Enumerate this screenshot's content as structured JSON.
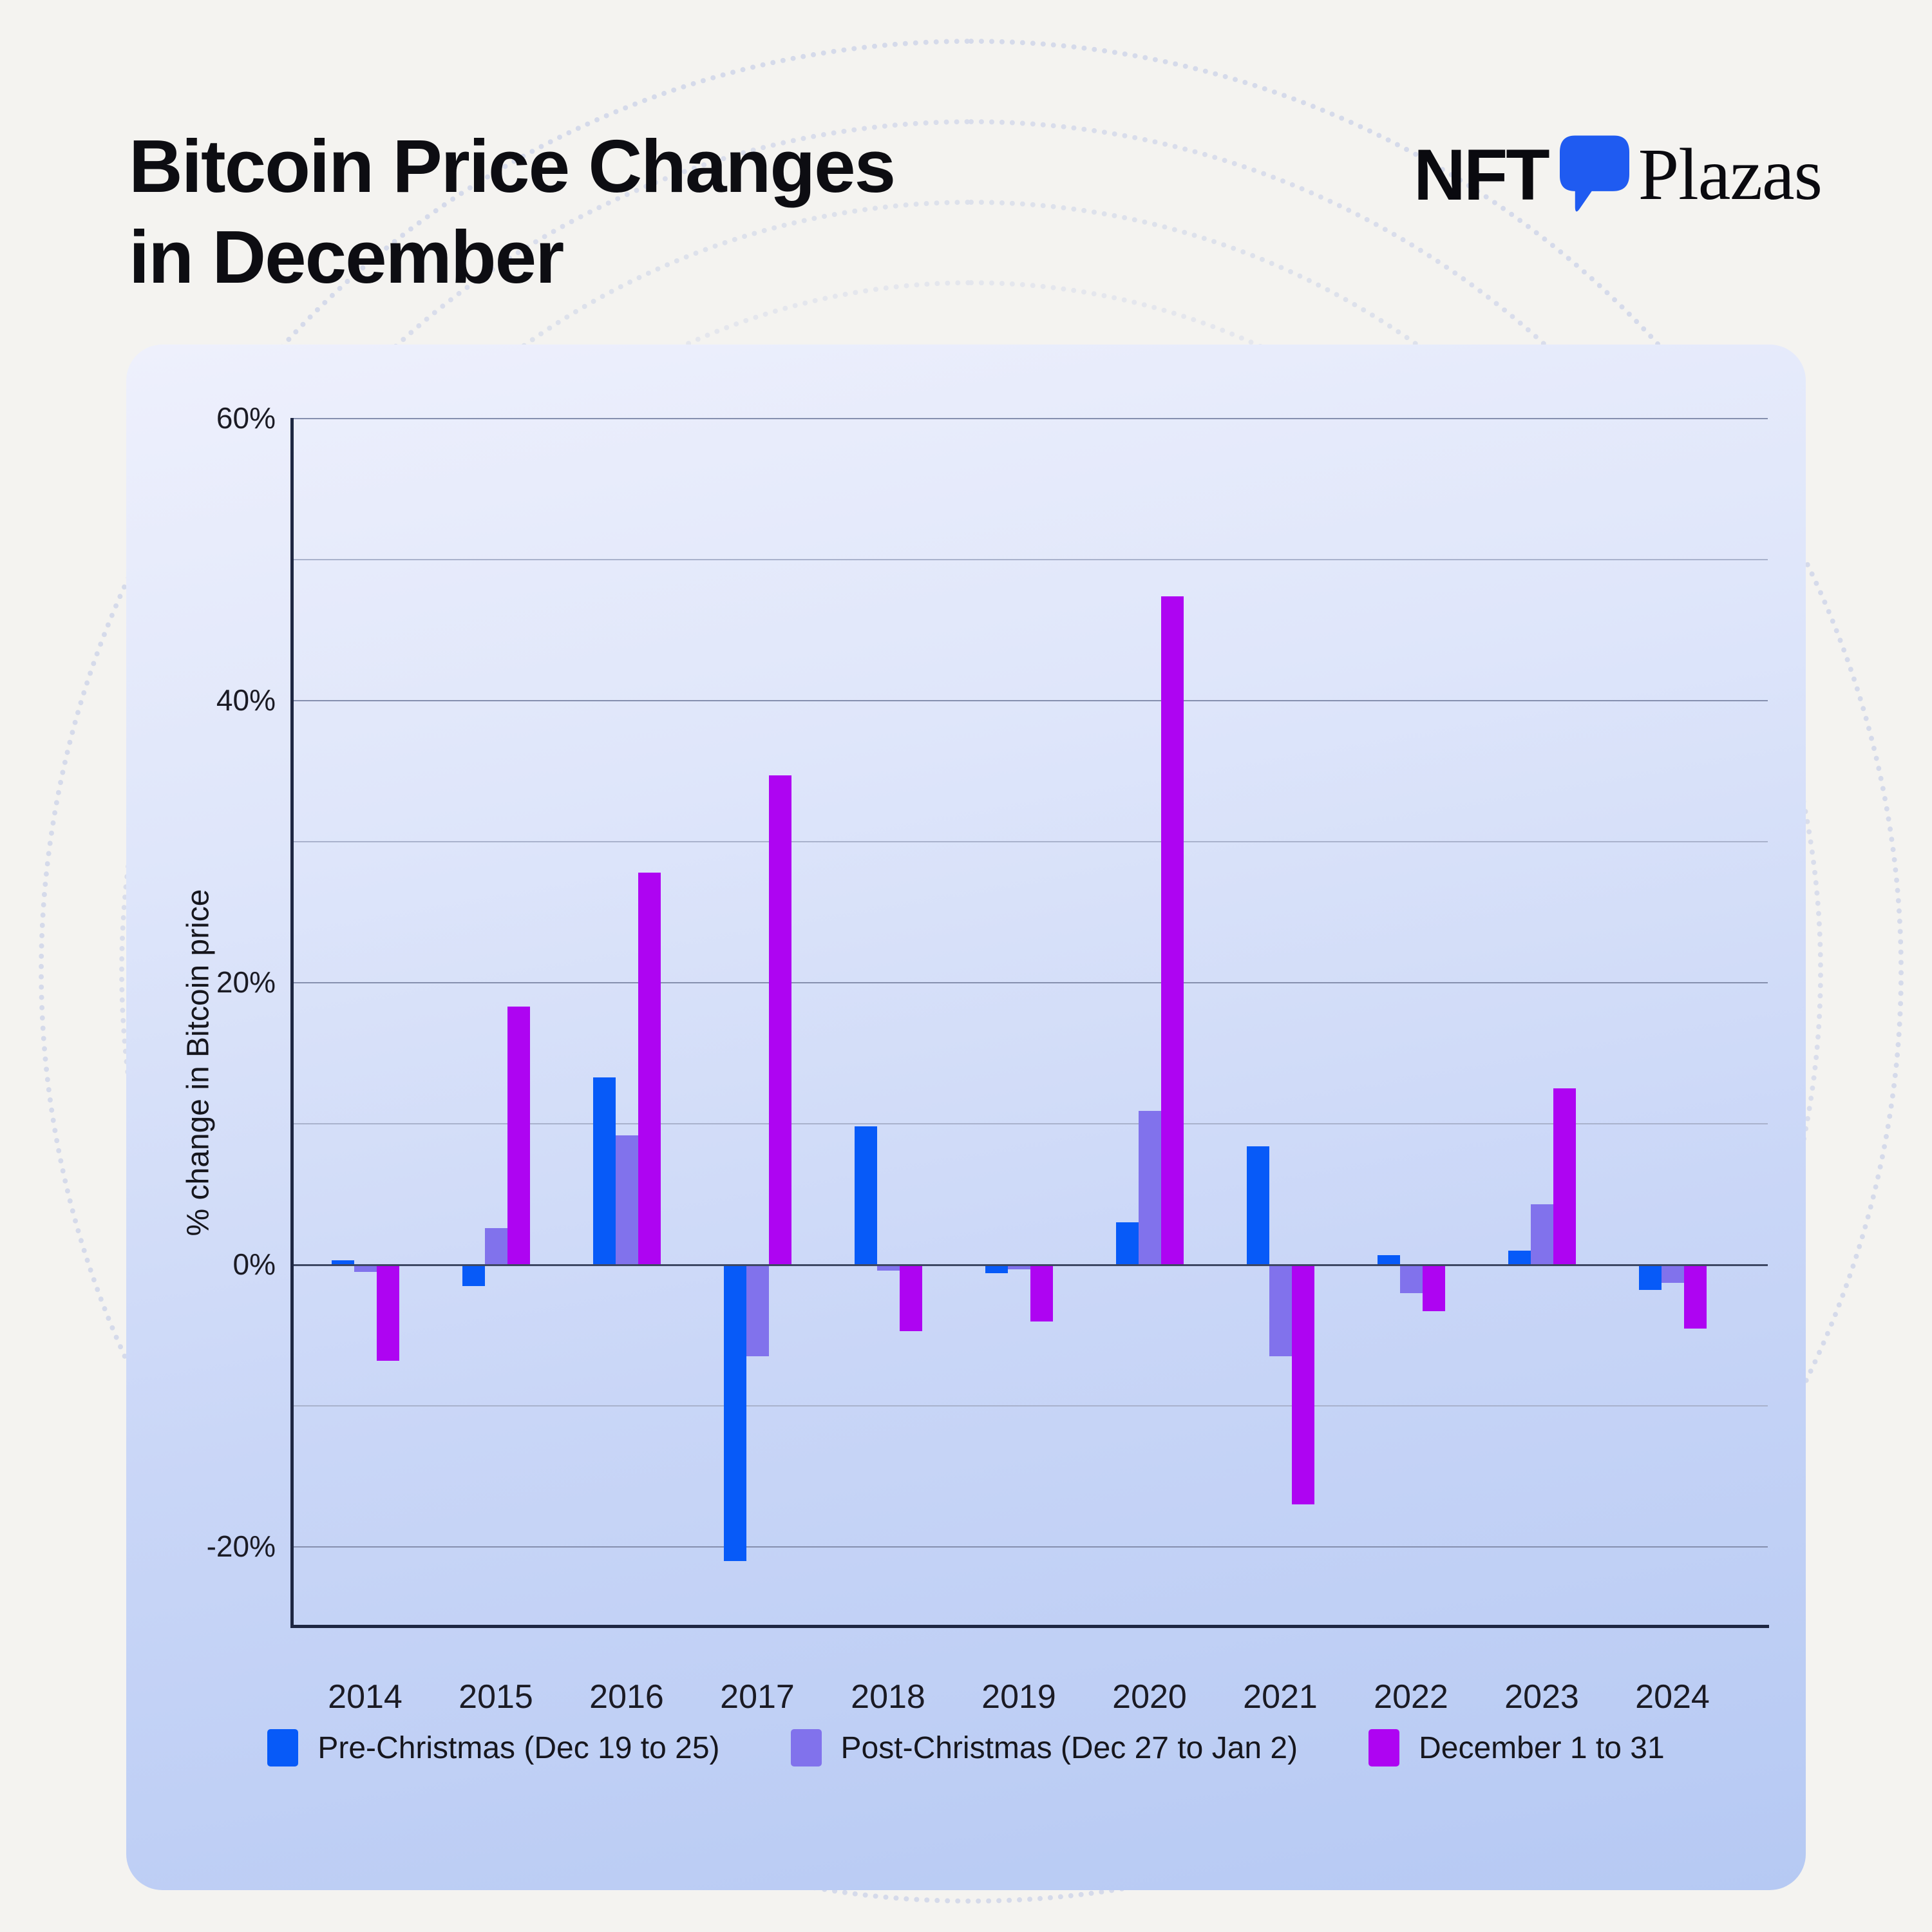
{
  "page": {
    "title": "Bitcoin Price Changes\nin December"
  },
  "logo": {
    "nft": "NFT",
    "plazas": "Plazas",
    "icon": "p-bubble-icon",
    "icon_color": "#1f5bf1"
  },
  "axis": {
    "ylabel": "% change in Bitcoin price",
    "ytick_labels": [
      "60%",
      "40%",
      "20%",
      "0%",
      "-20%"
    ],
    "ytick_values": [
      60,
      40,
      20,
      0,
      -20
    ]
  },
  "chart_data": {
    "type": "bar",
    "title": "Bitcoin Price Changes in December",
    "xlabel": "",
    "ylabel": "% change in Bitcoin price",
    "categories": [
      "2014",
      "2015",
      "2016",
      "2017",
      "2018",
      "2019",
      "2020",
      "2021",
      "2022",
      "2023",
      "2024"
    ],
    "series": [
      {
        "name": "Pre-Christmas (Dec 19 to 25)",
        "color": "#075af8",
        "values": [
          0.3,
          -1.5,
          13.3,
          -21.0,
          9.8,
          -0.6,
          3.0,
          8.4,
          0.7,
          1.0,
          -1.8
        ]
      },
      {
        "name": "Post-Christmas (Dec 27 to Jan 2)",
        "color": "#8172ec",
        "values": [
          -0.5,
          2.6,
          9.2,
          -6.5,
          -0.4,
          -0.3,
          10.9,
          -6.5,
          -2.0,
          4.3,
          -1.3
        ]
      },
      {
        "name": "December 1 to 31",
        "color": "#ae04f2",
        "values": [
          -6.8,
          18.3,
          27.8,
          34.7,
          -4.7,
          -4.0,
          47.4,
          -17.0,
          -3.3,
          12.5,
          -4.5
        ]
      }
    ],
    "ylim": [
      -25.5,
      61
    ],
    "yticks_labeled": [
      60,
      40,
      20,
      0,
      -20
    ],
    "yticks_minor": [
      50,
      30,
      10,
      -10
    ],
    "grid": true,
    "legend_position": "bottom"
  }
}
